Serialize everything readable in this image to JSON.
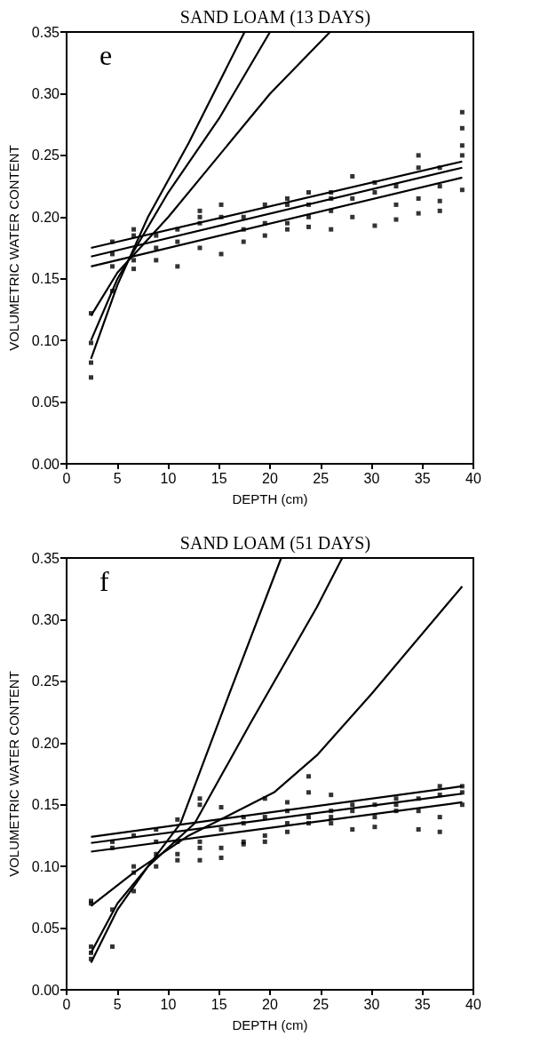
{
  "chart_data": [
    {
      "type": "scatter",
      "title": "SAND LOAM (13 DAYS)",
      "xlabel": "DEPTH (cm)",
      "ylabel": "VOLUMETRIC WATER CONTENT",
      "annotations": [
        "e"
      ],
      "xlim": [
        0,
        40
      ],
      "xticks": [
        0,
        5,
        10,
        15,
        20,
        25,
        30,
        35,
        40
      ],
      "ylim": [
        0,
        0.35
      ],
      "yticks": [
        {
          "value": 0,
          "label": "0.00"
        },
        {
          "value": 0.05,
          "label": "0.05"
        },
        {
          "value": 0.1,
          "label": "0.10"
        },
        {
          "value": 0.15,
          "label": "0.15"
        },
        {
          "value": 0.2,
          "label": "0.20"
        },
        {
          "value": 0.25,
          "label": "0.25"
        },
        {
          "value": 0.3,
          "label": "0.30"
        },
        {
          "value": 0.35,
          "label": "0.35"
        }
      ],
      "grid": false,
      "series": [
        {
          "marker": "square",
          "color": "#000000",
          "x": [
            2.4,
            2.4,
            2.4,
            2.4,
            4.5,
            4.5,
            4.5,
            4.5,
            6.6,
            6.6,
            6.6,
            6.6,
            8.8,
            8.8,
            8.8,
            10.9,
            10.9,
            10.9,
            13.1,
            13.1,
            13.1,
            13.1,
            15.2,
            15.2,
            15.2,
            17.4,
            17.4,
            17.4,
            19.5,
            19.5,
            19.5,
            21.7,
            21.7,
            21.7,
            21.7,
            23.8,
            23.8,
            23.8,
            23.8,
            26,
            26,
            26,
            26,
            28.1,
            28.1,
            28.1,
            30.3,
            30.3,
            30.3,
            32.4,
            32.4,
            32.4,
            34.6,
            34.6,
            34.6,
            34.6,
            36.7,
            36.7,
            36.7,
            36.7,
            38.9,
            38.9,
            38.9,
            38.9,
            38.9
          ],
          "values": [
            0.122,
            0.098,
            0.082,
            0.07,
            0.18,
            0.17,
            0.16,
            0.14,
            0.19,
            0.185,
            0.165,
            0.158,
            0.185,
            0.175,
            0.165,
            0.19,
            0.18,
            0.16,
            0.205,
            0.2,
            0.195,
            0.175,
            0.21,
            0.2,
            0.17,
            0.2,
            0.19,
            0.18,
            0.21,
            0.195,
            0.185,
            0.215,
            0.21,
            0.195,
            0.19,
            0.22,
            0.21,
            0.2,
            0.192,
            0.22,
            0.215,
            0.205,
            0.19,
            0.233,
            0.215,
            0.2,
            0.228,
            0.22,
            0.193,
            0.225,
            0.21,
            0.198,
            0.25,
            0.24,
            0.215,
            0.203,
            0.24,
            0.225,
            0.213,
            0.205,
            0.285,
            0.272,
            0.258,
            0.25,
            0.222
          ]
        },
        {
          "type": "line",
          "color": "#000000",
          "x": [
            2.4,
            5,
            8,
            12,
            17.5
          ],
          "values": [
            0.085,
            0.145,
            0.2,
            0.26,
            0.35
          ]
        },
        {
          "type": "line",
          "color": "#000000",
          "x": [
            2.4,
            5,
            10,
            15,
            20
          ],
          "values": [
            0.1,
            0.15,
            0.22,
            0.28,
            0.35
          ]
        },
        {
          "type": "line",
          "color": "#000000",
          "x": [
            2.4,
            5,
            10,
            15,
            20,
            25.9
          ],
          "values": [
            0.12,
            0.155,
            0.2,
            0.25,
            0.3,
            0.35
          ]
        },
        {
          "type": "line",
          "color": "#000000",
          "x": [
            2.4,
            38.9
          ],
          "values": [
            0.175,
            0.245
          ]
        },
        {
          "type": "line",
          "color": "#000000",
          "x": [
            2.4,
            38.9
          ],
          "values": [
            0.168,
            0.24
          ]
        },
        {
          "type": "line",
          "color": "#000000",
          "x": [
            2.4,
            38.9
          ],
          "values": [
            0.16,
            0.232
          ]
        }
      ]
    },
    {
      "type": "scatter",
      "title": "SAND LOAM (51 DAYS)",
      "xlabel": "DEPTH (cm)",
      "ylabel": "VOLUMETRIC WATER CONTENT",
      "annotations": [
        "f"
      ],
      "xlim": [
        0,
        40
      ],
      "xticks": [
        0,
        5,
        10,
        15,
        20,
        25,
        30,
        35,
        40
      ],
      "ylim": [
        0,
        0.35
      ],
      "yticks": [
        {
          "value": 0,
          "label": "0.00"
        },
        {
          "value": 0.05,
          "label": "0.05"
        },
        {
          "value": 0.1,
          "label": "0.10"
        },
        {
          "value": 0.15,
          "label": "0.15"
        },
        {
          "value": 0.2,
          "label": "0.20"
        },
        {
          "value": 0.25,
          "label": "0.25"
        },
        {
          "value": 0.3,
          "label": "0.30"
        },
        {
          "value": 0.35,
          "label": "0.35"
        }
      ],
      "grid": false,
      "series": [
        {
          "marker": "square",
          "color": "#000000",
          "x": [
            2.4,
            2.4,
            2.4,
            2.4,
            2.4,
            4.5,
            4.5,
            4.5,
            4.5,
            6.6,
            6.6,
            6.6,
            6.6,
            8.8,
            8.8,
            8.8,
            8.8,
            10.9,
            10.9,
            10.9,
            10.9,
            13.1,
            13.1,
            13.1,
            13.1,
            13.1,
            15.2,
            15.2,
            15.2,
            15.2,
            17.4,
            17.4,
            17.4,
            17.4,
            19.5,
            19.5,
            19.5,
            19.5,
            21.7,
            21.7,
            21.7,
            21.7,
            23.8,
            23.8,
            23.8,
            23.8,
            26,
            26,
            26,
            26,
            28.1,
            28.1,
            28.1,
            30.3,
            30.3,
            30.3,
            32.4,
            32.4,
            32.4,
            34.6,
            34.6,
            34.6,
            36.7,
            36.7,
            36.7,
            36.7,
            38.9,
            38.9,
            38.9
          ],
          "values": [
            0.072,
            0.07,
            0.035,
            0.03,
            0.025,
            0.12,
            0.115,
            0.065,
            0.035,
            0.125,
            0.1,
            0.095,
            0.08,
            0.13,
            0.12,
            0.11,
            0.1,
            0.138,
            0.12,
            0.11,
            0.105,
            0.155,
            0.15,
            0.12,
            0.115,
            0.105,
            0.148,
            0.13,
            0.115,
            0.107,
            0.14,
            0.135,
            0.12,
            0.118,
            0.155,
            0.14,
            0.125,
            0.12,
            0.152,
            0.145,
            0.135,
            0.128,
            0.173,
            0.16,
            0.14,
            0.135,
            0.158,
            0.145,
            0.14,
            0.135,
            0.15,
            0.145,
            0.13,
            0.15,
            0.14,
            0.132,
            0.155,
            0.15,
            0.145,
            0.155,
            0.145,
            0.13,
            0.165,
            0.158,
            0.14,
            0.128,
            0.165,
            0.16,
            0.15
          ]
        },
        {
          "type": "line",
          "color": "#000000",
          "x": [
            2.4,
            5,
            8,
            11.2,
            16,
            21.1
          ],
          "values": [
            0.022,
            0.065,
            0.1,
            0.135,
            0.24,
            0.35
          ]
        },
        {
          "type": "line",
          "color": "#000000",
          "x": [
            2.4,
            5,
            8,
            12.6,
            18,
            24.6,
            27.1
          ],
          "values": [
            0.03,
            0.07,
            0.1,
            0.135,
            0.215,
            0.31,
            0.35
          ]
        },
        {
          "type": "line",
          "color": "#000000",
          "x": [
            2.4,
            6.6,
            12,
            20.4,
            24.6,
            30,
            38.9
          ],
          "values": [
            0.068,
            0.095,
            0.125,
            0.16,
            0.19,
            0.24,
            0.327
          ]
        },
        {
          "type": "line",
          "color": "#000000",
          "x": [
            2.4,
            38.9
          ],
          "values": [
            0.124,
            0.165
          ]
        },
        {
          "type": "line",
          "color": "#000000",
          "x": [
            2.4,
            38.9
          ],
          "values": [
            0.119,
            0.159
          ]
        },
        {
          "type": "line",
          "color": "#000000",
          "x": [
            2.4,
            38.9
          ],
          "values": [
            0.112,
            0.152
          ]
        }
      ]
    }
  ]
}
